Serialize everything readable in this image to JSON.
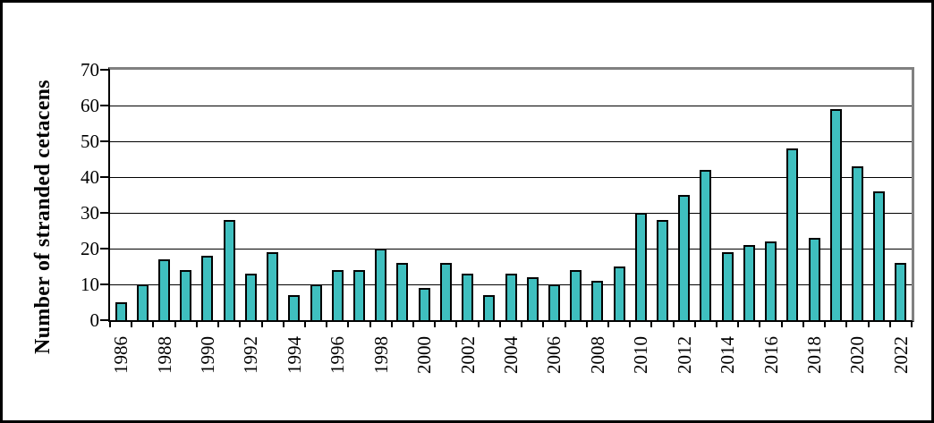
{
  "chart_data": {
    "type": "bar",
    "title": "",
    "ylabel": "Number of stranded cetacens",
    "xlabel": "",
    "categories": [
      "1986",
      "1987",
      "1988",
      "1989",
      "1990",
      "1991",
      "1992",
      "1993",
      "1994",
      "1995",
      "1996",
      "1997",
      "1998",
      "1999",
      "2000",
      "2001",
      "2002",
      "2003",
      "2004",
      "2005",
      "2006",
      "2007",
      "2008",
      "2009",
      "2010",
      "2011",
      "2012",
      "2013",
      "2014",
      "2015",
      "2016",
      "2017",
      "2018",
      "2019",
      "2020",
      "2021",
      "2022"
    ],
    "values": [
      5,
      10,
      17,
      14,
      18,
      28,
      13,
      19,
      7,
      10,
      14,
      14,
      20,
      16,
      9,
      16,
      13,
      7,
      13,
      12,
      10,
      14,
      11,
      15,
      30,
      28,
      35,
      42,
      19,
      21,
      22,
      48,
      23,
      59,
      43,
      36,
      16
    ],
    "ylim": [
      0,
      70
    ],
    "yticks": [
      0,
      10,
      20,
      30,
      40,
      50,
      60,
      70
    ],
    "xtick_label_every": 2,
    "grid": true,
    "legend": null,
    "bar_color": "#3FBFBF",
    "bar_border_color": "#000000",
    "frame_color": "#808080",
    "axis_color": "#000000"
  }
}
